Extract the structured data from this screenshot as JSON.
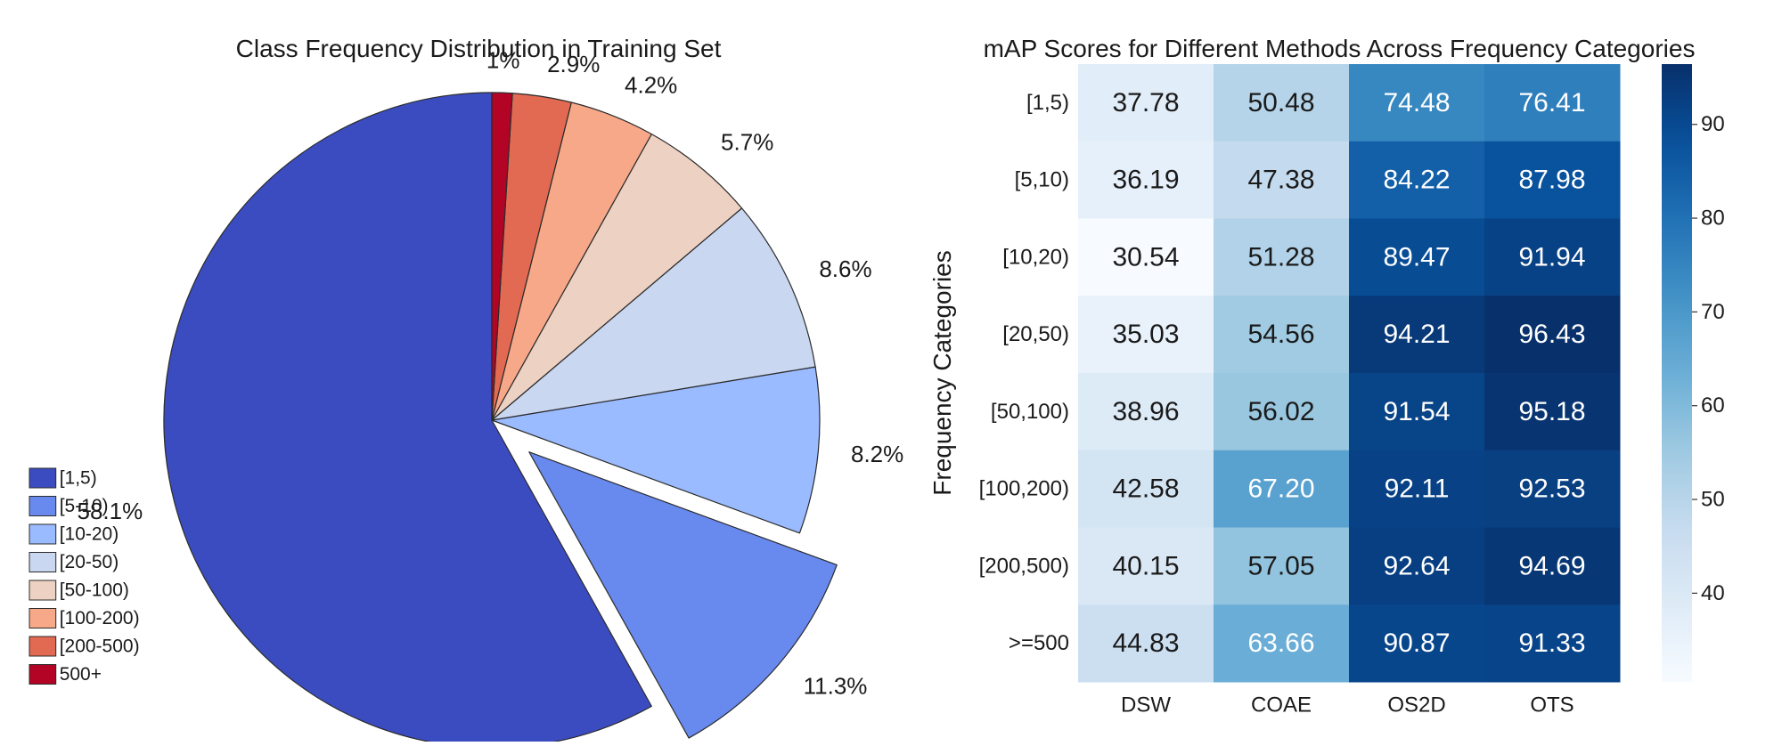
{
  "chart_data": [
    {
      "type": "pie",
      "title": "Class Frequency Distribution in Training Set",
      "categories": [
        "[1,5)",
        "[5-10)",
        "[10-20)",
        "[20-50)",
        "[50-100)",
        "[100-200)",
        "[200-500)",
        "500+"
      ],
      "values": [
        58.1,
        11.3,
        8.2,
        8.6,
        5.7,
        4.2,
        2.9,
        1.0
      ],
      "value_labels": [
        "58.1%",
        "11.3%",
        "8.2%",
        "8.6%",
        "5.7%",
        "4.2%",
        "2.9%",
        "1%"
      ],
      "colors": [
        "#3b4cc0",
        "#6889ee",
        "#9abbff",
        "#c9d7f0",
        "#edd1c2",
        "#f7a889",
        "#e26952",
        "#b40426"
      ],
      "exploded": [
        0,
        1,
        0,
        0,
        0,
        0,
        0,
        0
      ],
      "start_angle_deg": 90,
      "direction": "counterclockwise",
      "legend_position": "lower-left"
    },
    {
      "type": "heatmap",
      "title": "mAP Scores for Different Methods Across Frequency Categories",
      "ylabel": "Frequency Categories",
      "xlabel": "",
      "x": [
        "DSW",
        "COAE",
        "OS2D",
        "OTS"
      ],
      "y": [
        "[1,5)",
        "[5,10)",
        "[10,20)",
        "[20,50)",
        "[50,100)",
        "[100,200)",
        "[200,500)",
        ">=500"
      ],
      "values": [
        [
          "37.78",
          "50.48",
          "74.48",
          "76.41"
        ],
        [
          "36.19",
          "47.38",
          "84.22",
          "87.98"
        ],
        [
          "30.54",
          "51.28",
          "89.47",
          "91.94"
        ],
        [
          "35.03",
          "54.56",
          "94.21",
          "96.43"
        ],
        [
          "38.96",
          "56.02",
          "91.54",
          "95.18"
        ],
        [
          "42.58",
          "67.20",
          "92.11",
          "92.53"
        ],
        [
          "40.15",
          "57.05",
          "92.64",
          "94.69"
        ],
        [
          "44.83",
          "63.66",
          "90.87",
          "91.33"
        ]
      ],
      "colormap": "Blues",
      "vmin": 30.54,
      "vmax": 96.43,
      "colorbar_ticks": [
        "40",
        "50",
        "60",
        "70",
        "80",
        "90"
      ],
      "colorbar_tick_values": [
        40,
        50,
        60,
        70,
        80,
        90
      ]
    }
  ]
}
